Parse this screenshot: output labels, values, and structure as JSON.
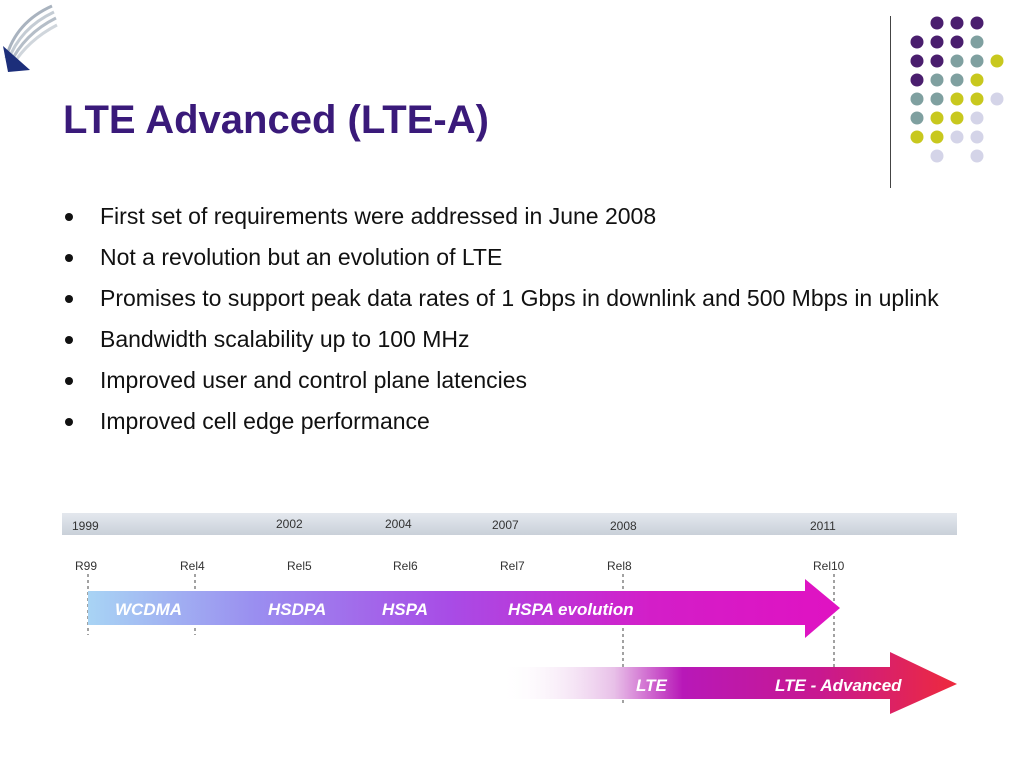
{
  "slide": {
    "title": "LTE Advanced (LTE-A)",
    "bullets": [
      "First set of requirements were addressed in June 2008",
      "Not a revolution but an evolution of LTE",
      "Promises to support peak data rates of 1 Gbps in downlink and 500 Mbps in uplink",
      "Bandwidth scalability up to 100 MHz",
      "Improved user and control plane latencies",
      "Improved cell edge performance"
    ]
  },
  "colors": {
    "title": "#3a1a7a",
    "dot_purple": "#4a1e6e",
    "dot_teal": "#7fa0a0",
    "dot_yellow": "#c8c81e",
    "dot_lavender": "#d4d4e8"
  },
  "timeline": {
    "years": [
      "1999",
      "2002",
      "2004",
      "2007",
      "2008",
      "2011"
    ],
    "releases": [
      "R99",
      "Rel4",
      "Rel5",
      "Rel6",
      "Rel7",
      "Rel8",
      "Rel10"
    ],
    "upper_arrow_labels": [
      "WCDMA",
      "HSDPA",
      "HSPA",
      "HSPA evolution"
    ],
    "lower_arrow_labels": [
      "LTE",
      "LTE - Advanced"
    ]
  }
}
